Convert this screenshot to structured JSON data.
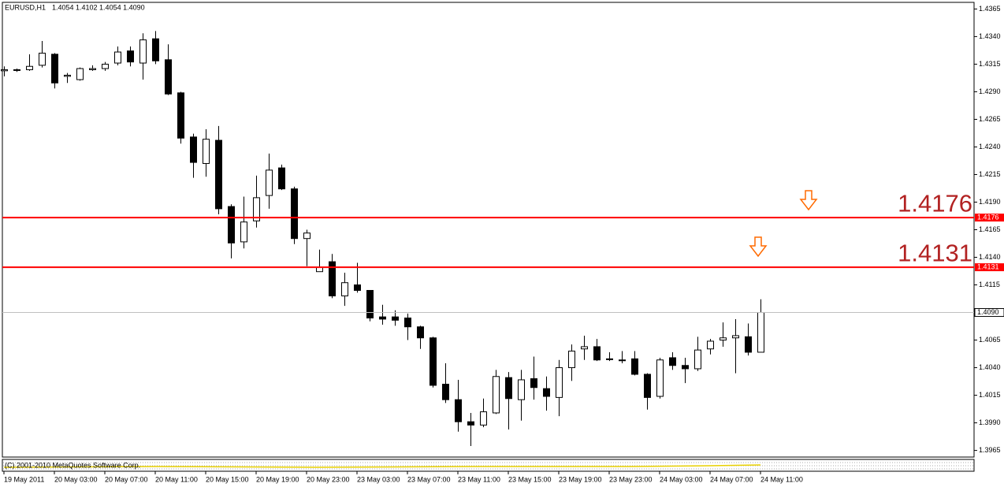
{
  "chart_data": {
    "type": "candlestick",
    "title": "EURUSD,H1",
    "subtitle": "1.4054 1.4102 1.4054 1.4090",
    "categories": [
      "19 May 2011",
      null,
      null,
      null,
      "20 May 03:00",
      null,
      null,
      null,
      "20 May 07:00",
      null,
      null,
      null,
      "20 May 11:00",
      null,
      null,
      null,
      "20 May 15:00",
      null,
      null,
      null,
      "20 May 19:00",
      null,
      null,
      null,
      "20 May 23:00",
      null,
      null,
      null,
      "23 May 03:00",
      null,
      null,
      null,
      "23 May 07:00",
      null,
      null,
      null,
      "23 May 11:00",
      null,
      null,
      null,
      "23 May 15:00",
      null,
      null,
      null,
      "23 May 19:00",
      null,
      null,
      null,
      "23 May 23:00",
      null,
      null,
      null,
      "24 May 03:00",
      null,
      null,
      null,
      "24 May 07:00",
      null,
      null,
      null,
      "24 May 11:00"
    ],
    "open": [
      1.4309,
      1.431,
      1.431,
      1.4314,
      1.4324,
      1.4304,
      1.4301,
      1.431,
      1.4311,
      1.4316,
      1.4327,
      1.4316,
      1.4338,
      1.4319,
      1.4289,
      1.4249,
      1.4225,
      1.4246,
      1.4186,
      1.4154,
      1.4173,
      1.4196,
      1.4221,
      1.4202,
      1.4157,
      1.4127,
      1.4136,
      1.4105,
      1.4115,
      1.411,
      1.4086,
      1.4086,
      1.4085,
      1.4077,
      1.4067,
      1.4025,
      1.4011,
      1.3991,
      1.3988,
      1.3999,
      1.4031,
      1.4011,
      1.403,
      1.4021,
      1.4013,
      1.404,
      1.4057,
      1.4059,
      1.4048,
      1.4047,
      1.4048,
      1.4034,
      1.4014,
      1.4049,
      1.4042,
      1.4039,
      1.4057,
      1.4065,
      1.4067,
      1.4068,
      1.4054
    ],
    "high": [
      1.4313,
      1.4311,
      1.4324,
      1.4336,
      1.4325,
      1.4307,
      1.4312,
      1.4314,
      1.4317,
      1.4331,
      1.4331,
      1.4343,
      1.4345,
      1.4333,
      1.429,
      1.4252,
      1.4256,
      1.4259,
      1.4188,
      1.4195,
      1.4214,
      1.4234,
      1.4224,
      1.4204,
      1.4165,
      1.4147,
      1.4143,
      1.4126,
      1.4135,
      1.411,
      1.4097,
      1.4092,
      1.4089,
      1.4078,
      1.4068,
      1.4044,
      1.4029,
      1.3999,
      1.4012,
      1.4038,
      1.4036,
      1.4038,
      1.405,
      1.4032,
      1.4047,
      1.4061,
      1.4069,
      1.4066,
      1.4054,
      1.4055,
      1.4055,
      1.4035,
      1.4049,
      1.4054,
      1.4049,
      1.4068,
      1.4066,
      1.4081,
      1.4084,
      1.408,
      1.4102
    ],
    "low": [
      1.4304,
      1.4308,
      1.4309,
      1.4312,
      1.4293,
      1.4298,
      1.43,
      1.4309,
      1.4309,
      1.4314,
      1.4313,
      1.4301,
      1.4315,
      1.4287,
      1.4243,
      1.4212,
      1.4213,
      1.4179,
      1.4139,
      1.4148,
      1.4167,
      1.4184,
      1.4201,
      1.4152,
      1.4132,
      1.4127,
      1.4103,
      1.4096,
      1.4108,
      1.4082,
      1.4079,
      1.4078,
      1.4065,
      1.4057,
      1.4022,
      1.4008,
      1.3982,
      1.3969,
      1.3986,
      1.3998,
      1.3984,
      1.3992,
      1.4011,
      1.4001,
      1.3996,
      1.4028,
      1.4047,
      1.4046,
      1.4046,
      1.4044,
      1.4033,
      1.4002,
      1.4012,
      1.4038,
      1.4026,
      1.4037,
      1.4052,
      1.4059,
      1.4035,
      1.4051,
      1.4054
    ],
    "close": [
      1.431,
      1.431,
      1.4313,
      1.4325,
      1.4298,
      1.4305,
      1.4311,
      1.4311,
      1.4315,
      1.4326,
      1.4317,
      1.4337,
      1.4318,
      1.4288,
      1.4248,
      1.4226,
      1.4247,
      1.4184,
      1.4153,
      1.4172,
      1.4194,
      1.4219,
      1.4202,
      1.4157,
      1.4162,
      1.4131,
      1.4105,
      1.4117,
      1.411,
      1.4085,
      1.4084,
      1.4083,
      1.4077,
      1.4067,
      1.4024,
      1.4011,
      1.3991,
      1.3988,
      1.4,
      1.4032,
      1.4012,
      1.4029,
      1.4022,
      1.4014,
      1.404,
      1.4055,
      1.4059,
      1.4047,
      1.4048,
      1.4047,
      1.4034,
      1.4013,
      1.4047,
      1.4042,
      1.4039,
      1.4056,
      1.4064,
      1.4067,
      1.4069,
      1.4054,
      1.409
    ],
    "up_color": "#ffffff",
    "down_color": "#000000",
    "ylim": [
      1.3959,
      1.4371
    ],
    "yticks": [
      1.4365,
      {
        "value": 1.434,
        "label": "1.4340"
      },
      1.4315,
      {
        "value": 1.429,
        "label": "1.4290"
      },
      1.4265,
      {
        "value": 1.424,
        "label": "1.4240"
      },
      1.4215,
      {
        "value": 1.419,
        "label": "1.4190"
      },
      1.4165,
      {
        "value": 1.414,
        "label": "1.4140"
      },
      1.4115,
      {
        "value": 1.409,
        "label": "1.4090"
      },
      1.4065,
      {
        "value": 1.404,
        "label": "1.4040"
      },
      1.4015,
      {
        "value": 1.399,
        "label": "1.3990"
      },
      1.3965
    ],
    "levels": [
      {
        "value": 1.4176,
        "color": "#ff0000"
      },
      {
        "value": 1.4131,
        "color": "#ff0000"
      }
    ],
    "bid": {
      "value": 1.409,
      "label": "1.4090"
    },
    "copyright": "(C) 2001-2010 MetaQuotes Software Corp."
  }
}
